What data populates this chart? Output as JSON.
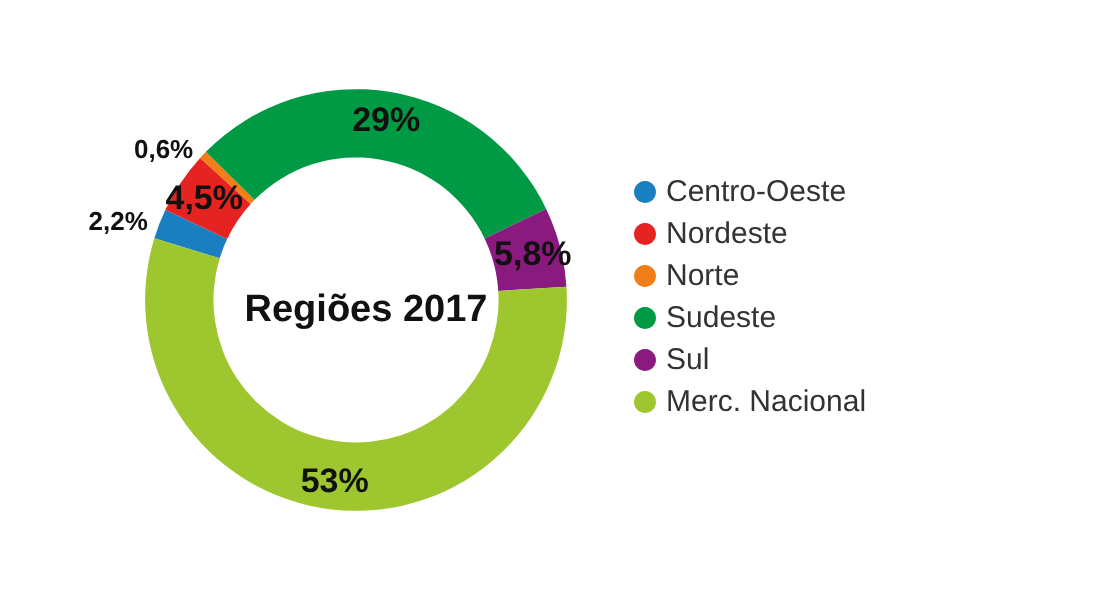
{
  "chart_data": {
    "type": "donut",
    "title": "Regiões 2017",
    "categories": [
      "Centro-Oeste",
      "Nordeste",
      "Norte",
      "Sudeste",
      "Sul",
      "Merc. Nacional"
    ],
    "values": [
      2.2,
      4.5,
      0.6,
      29,
      5.8,
      53
    ],
    "value_labels": [
      "2,2%",
      "4,5%",
      "0,6%",
      "29%",
      "5,8%",
      "53%"
    ],
    "colors": [
      "#1a7fc1",
      "#e52421",
      "#f07f1a",
      "#009a44",
      "#8b1a7e",
      "#9dc62f"
    ],
    "legend": "right"
  }
}
